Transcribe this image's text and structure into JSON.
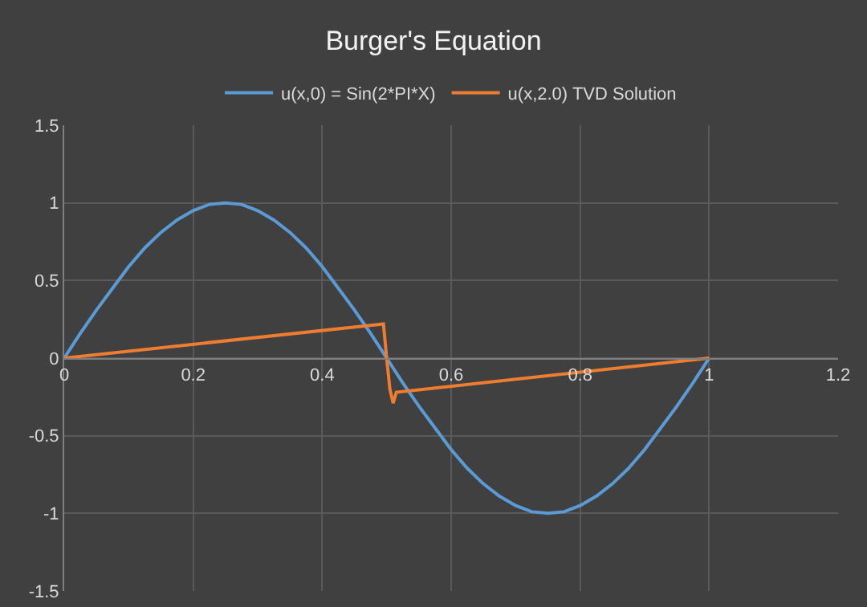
{
  "chart_data": {
    "type": "line",
    "title": "Burger's Equation",
    "legend": "top",
    "grid": true,
    "marker": "none",
    "line_style": "solid",
    "xlim": [
      0,
      1.2
    ],
    "xticks": [
      0,
      0.2,
      0.4,
      0.6,
      0.8,
      1,
      1.2
    ],
    "ylim": [
      -1.5,
      1.5
    ],
    "yticks": [
      -1.5,
      -1,
      -0.5,
      0,
      0.5,
      1,
      1.5
    ],
    "series": [
      {
        "name": "u(x,0) = Sin(2*PI*X)",
        "color": "#5b9bd5",
        "x": [
          0,
          0.025,
          0.05,
          0.075,
          0.1,
          0.125,
          0.15,
          0.175,
          0.2,
          0.225,
          0.25,
          0.275,
          0.3,
          0.325,
          0.35,
          0.375,
          0.4,
          0.425,
          0.45,
          0.475,
          0.5,
          0.525,
          0.55,
          0.575,
          0.6,
          0.625,
          0.65,
          0.675,
          0.7,
          0.725,
          0.75,
          0.775,
          0.8,
          0.825,
          0.85,
          0.875,
          0.9,
          0.925,
          0.95,
          0.975,
          1
        ],
        "values": [
          0,
          0.16,
          0.31,
          0.45,
          0.59,
          0.71,
          0.81,
          0.89,
          0.95,
          0.99,
          1,
          0.99,
          0.95,
          0.89,
          0.81,
          0.71,
          0.59,
          0.45,
          0.31,
          0.16,
          0,
          -0.16,
          -0.31,
          -0.45,
          -0.59,
          -0.71,
          -0.81,
          -0.89,
          -0.95,
          -0.99,
          -1,
          -0.99,
          -0.95,
          -0.89,
          -0.81,
          -0.71,
          -0.59,
          -0.45,
          -0.31,
          -0.16,
          0
        ]
      },
      {
        "name": "u(x,2.0) TVD Solution",
        "color": "#ed7d31",
        "x": [
          0,
          0.495,
          0.5,
          0.505,
          0.51,
          0.515,
          1
        ],
        "values": [
          0,
          0.22,
          0.0,
          -0.2,
          -0.29,
          -0.22,
          0
        ]
      }
    ]
  }
}
